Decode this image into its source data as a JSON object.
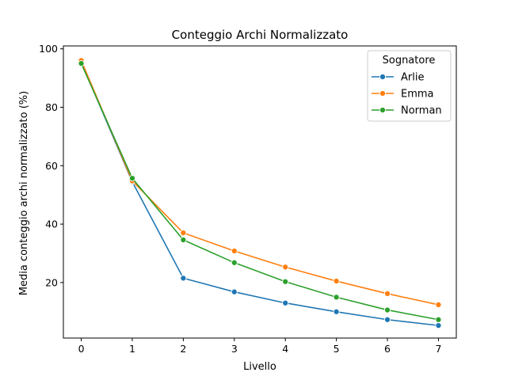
{
  "chart_data": {
    "type": "line",
    "title": "Conteggio Archi Normalizzato",
    "xlabel": "Livello",
    "ylabel": "Media conteggio archi normalizzato (%)",
    "x": [
      0,
      1,
      2,
      3,
      4,
      5,
      6,
      7
    ],
    "x_ticks": [
      0,
      1,
      2,
      3,
      4,
      5,
      6,
      7
    ],
    "y_ticks": [
      20,
      40,
      60,
      80,
      100
    ],
    "xlim": [
      -0.35,
      7.35
    ],
    "ylim": [
      1.0,
      101.0
    ],
    "grid": false,
    "legend": {
      "title": "Sognatore",
      "placement": "top-right"
    },
    "series": [
      {
        "name": "Arlie",
        "color": "#1f77b4",
        "values": [
          95.5,
          54.5,
          21.5,
          16.8,
          13.0,
          10.0,
          7.3,
          5.3
        ]
      },
      {
        "name": "Emma",
        "color": "#ff7f0e",
        "values": [
          96.0,
          54.8,
          37.0,
          30.8,
          25.3,
          20.5,
          16.2,
          12.4
        ]
      },
      {
        "name": "Norman",
        "color": "#2ca02c",
        "values": [
          95.0,
          55.7,
          34.6,
          26.8,
          20.3,
          15.0,
          10.6,
          7.3
        ]
      }
    ]
  }
}
